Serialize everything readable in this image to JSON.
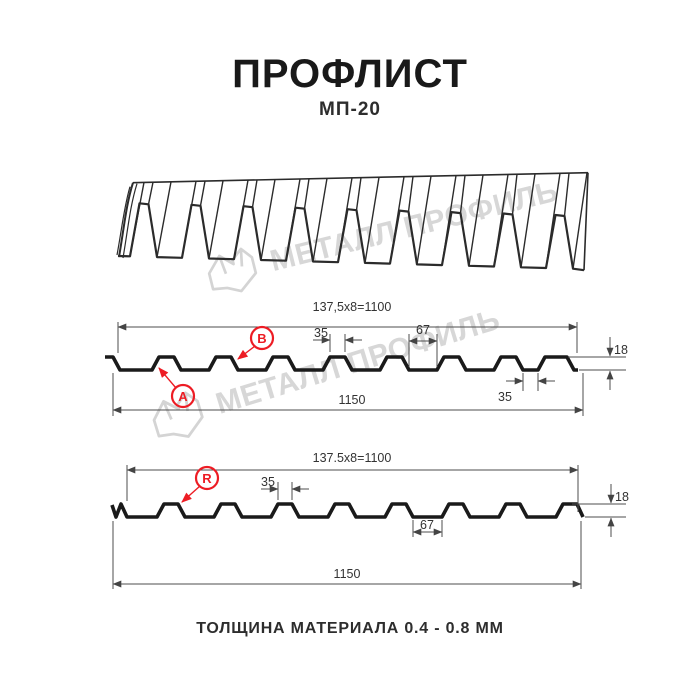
{
  "header": {
    "title": "ПРОФЛИСТ",
    "subtitle": "МП-20"
  },
  "watermark": {
    "text": "МЕТАЛЛ ПРОФИЛЬ"
  },
  "profile1": {
    "dim_pitch": "137,5x8=1100",
    "dim_total": "1150",
    "dim_crest": "35",
    "dim_valley": "67",
    "dim_height": "18",
    "dim_edge": "35",
    "label_a": "А",
    "label_b": "В"
  },
  "profile2": {
    "dim_pitch": "137.5x8=1100",
    "dim_total": "1150",
    "dim_crest": "35",
    "dim_valley": "67",
    "dim_height": "18",
    "label_r": "R"
  },
  "footer": {
    "text": "ТОЛЩИНА МАТЕРИАЛА 0.4 - 0.8 ММ"
  },
  "colors": {
    "accent_red": "#ed1c24",
    "line": "#1a1a1a",
    "dim_line": "#4d4d4d",
    "watermark": "#d7d7d7"
  }
}
